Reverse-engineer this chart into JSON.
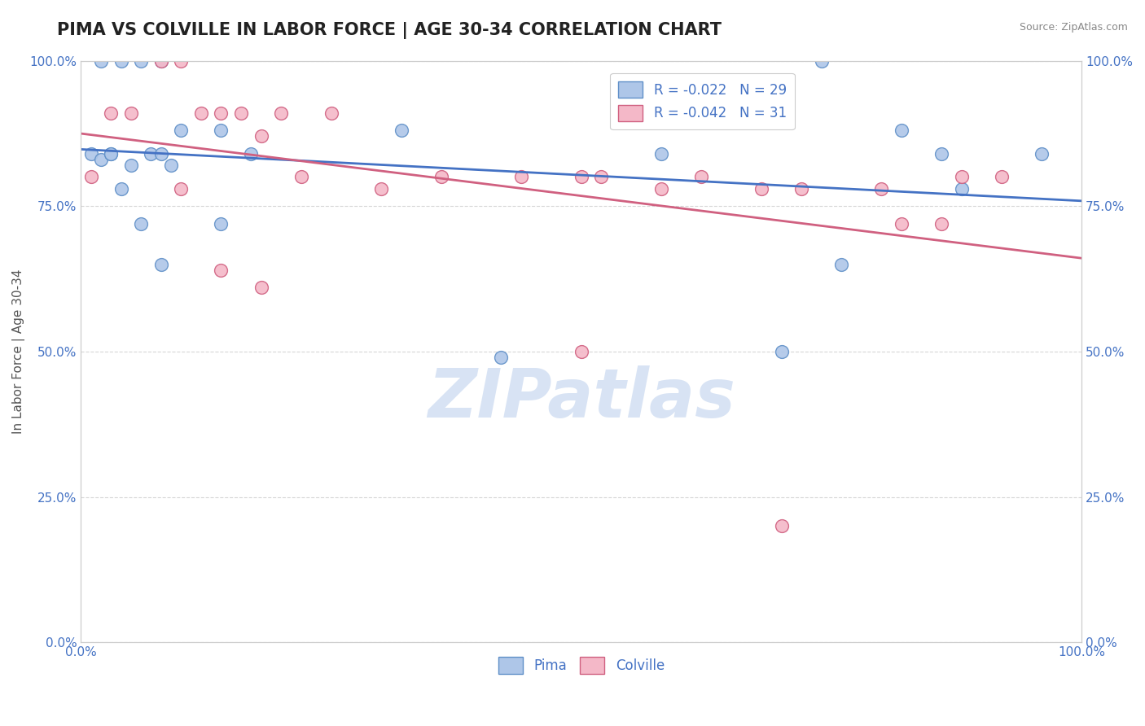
{
  "title": "PIMA VS COLVILLE IN LABOR FORCE | AGE 30-34 CORRELATION CHART",
  "xlabel": "",
  "ylabel": "In Labor Force | Age 30-34",
  "source": "Source: ZipAtlas.com",
  "pima_R": -0.022,
  "pima_N": 29,
  "colville_R": -0.042,
  "colville_N": 31,
  "pima_color": "#aec6e8",
  "colville_color": "#f4b8c8",
  "pima_edge_color": "#6090c8",
  "colville_edge_color": "#d06080",
  "pima_line_color": "#4472c4",
  "colville_line_color": "#d06080",
  "background_color": "#ffffff",
  "xmin": 0.0,
  "xmax": 1.0,
  "ymin": 0.0,
  "ymax": 1.0,
  "pima_x": [
    0.01,
    0.02,
    0.04,
    0.06,
    0.08,
    0.1,
    0.14,
    0.32,
    0.58,
    0.74,
    0.82,
    0.86,
    0.88,
    0.96,
    0.02,
    0.05,
    0.07,
    0.08,
    0.09,
    0.03,
    0.03,
    0.04,
    0.06,
    0.08,
    0.14,
    0.17,
    0.42,
    0.7,
    0.76
  ],
  "pima_y": [
    0.84,
    1.0,
    1.0,
    1.0,
    1.0,
    0.88,
    0.88,
    0.88,
    0.84,
    1.0,
    0.88,
    0.84,
    0.78,
    0.84,
    0.83,
    0.82,
    0.84,
    0.84,
    0.82,
    0.84,
    0.84,
    0.78,
    0.72,
    0.65,
    0.72,
    0.84,
    0.49,
    0.5,
    0.65
  ],
  "colville_x": [
    0.01,
    0.03,
    0.05,
    0.08,
    0.1,
    0.12,
    0.14,
    0.16,
    0.18,
    0.2,
    0.22,
    0.25,
    0.3,
    0.36,
    0.44,
    0.5,
    0.52,
    0.58,
    0.62,
    0.68,
    0.72,
    0.8,
    0.82,
    0.86,
    0.88,
    0.92,
    0.1,
    0.14,
    0.18,
    0.5,
    0.7
  ],
  "colville_y": [
    0.8,
    0.91,
    0.91,
    1.0,
    1.0,
    0.91,
    0.91,
    0.91,
    0.87,
    0.91,
    0.8,
    0.91,
    0.78,
    0.8,
    0.8,
    0.8,
    0.8,
    0.78,
    0.8,
    0.78,
    0.78,
    0.78,
    0.72,
    0.72,
    0.8,
    0.8,
    0.78,
    0.64,
    0.61,
    0.5,
    0.2
  ],
  "yticks": [
    0.0,
    0.25,
    0.5,
    0.75,
    1.0
  ],
  "ytick_labels": [
    "0.0%",
    "25.0%",
    "50.0%",
    "75.0%",
    "100.0%"
  ],
  "xticks": [
    0.0,
    1.0
  ],
  "xtick_labels": [
    "0.0%",
    "100.0%"
  ],
  "marker_size": 130,
  "title_fontsize": 15,
  "axis_label_fontsize": 11,
  "tick_fontsize": 11,
  "legend_fontsize": 12,
  "watermark": "ZIPatlas",
  "watermark_color": "#c8d8f0",
  "watermark_fontsize": 60
}
